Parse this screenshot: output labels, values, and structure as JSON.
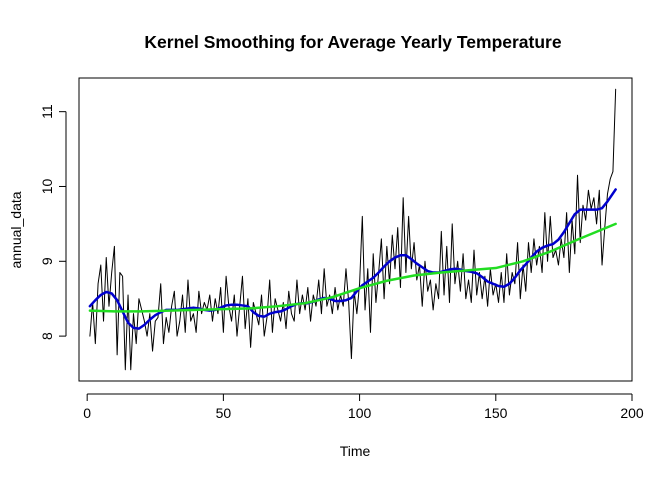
{
  "chart_data": {
    "type": "line",
    "title": "Kernel Smoothing for Average Yearly Temperature",
    "xlabel": "Time",
    "ylabel": "annual_data",
    "xlim": [
      -3,
      200
    ],
    "ylim": [
      7.4,
      11.45
    ],
    "x_ticks": [
      0,
      50,
      100,
      150,
      200
    ],
    "y_ticks": [
      8,
      9,
      10,
      11
    ],
    "x_tick_labels": [
      "0",
      "50",
      "100",
      "150",
      "200"
    ],
    "y_tick_labels": [
      "8",
      "9",
      "10",
      "11"
    ],
    "grid": false,
    "legend": "none",
    "series": [
      {
        "color": "#000000",
        "line_width": 1,
        "x": [
          1,
          2,
          3,
          4,
          5,
          6,
          7,
          8,
          9,
          10,
          11,
          12,
          13,
          14,
          15,
          16,
          17,
          18,
          19,
          20,
          21,
          22,
          23,
          24,
          25,
          26,
          27,
          28,
          29,
          30,
          31,
          32,
          33,
          34,
          35,
          36,
          37,
          38,
          39,
          40,
          41,
          42,
          43,
          44,
          45,
          46,
          47,
          48,
          49,
          50,
          51,
          52,
          53,
          54,
          55,
          56,
          57,
          58,
          59,
          60,
          61,
          62,
          63,
          64,
          65,
          66,
          67,
          68,
          69,
          70,
          71,
          72,
          73,
          74,
          75,
          76,
          77,
          78,
          79,
          80,
          81,
          82,
          83,
          84,
          85,
          86,
          87,
          88,
          89,
          90,
          91,
          92,
          93,
          94,
          95,
          96,
          97,
          98,
          99,
          100,
          101,
          102,
          103,
          104,
          105,
          106,
          107,
          108,
          109,
          110,
          111,
          112,
          113,
          114,
          115,
          116,
          117,
          118,
          119,
          120,
          121,
          122,
          123,
          124,
          125,
          126,
          127,
          128,
          129,
          130,
          131,
          132,
          133,
          134,
          135,
          136,
          137,
          138,
          139,
          140,
          141,
          142,
          143,
          144,
          145,
          146,
          147,
          148,
          149,
          150,
          151,
          152,
          153,
          154,
          155,
          156,
          157,
          158,
          159,
          160,
          161,
          162,
          163,
          164,
          165,
          166,
          167,
          168,
          169,
          170,
          171,
          172,
          173,
          174,
          175,
          176,
          177,
          178,
          179,
          180,
          181,
          182,
          183,
          184,
          185,
          186,
          187,
          188,
          189,
          190,
          191,
          192,
          193,
          194
        ],
        "y": [
          8.0,
          8.45,
          7.9,
          8.7,
          8.95,
          8.2,
          9.05,
          8.4,
          8.85,
          9.2,
          7.75,
          8.85,
          8.8,
          7.55,
          8.55,
          7.55,
          8.3,
          7.9,
          8.5,
          8.35,
          8.2,
          8.0,
          8.3,
          7.8,
          8.2,
          8.25,
          8.7,
          7.9,
          8.25,
          8.05,
          8.4,
          8.6,
          8.0,
          8.2,
          8.55,
          8.05,
          8.75,
          8.2,
          8.3,
          8.05,
          8.6,
          8.3,
          8.45,
          8.35,
          8.55,
          8.2,
          8.5,
          8.3,
          8.65,
          8.05,
          8.8,
          8.4,
          8.2,
          8.55,
          8.0,
          8.4,
          8.8,
          8.1,
          8.5,
          7.85,
          8.45,
          8.3,
          8.15,
          8.55,
          8.0,
          8.25,
          8.75,
          8.05,
          8.5,
          8.35,
          8.2,
          8.45,
          8.1,
          8.6,
          8.3,
          8.2,
          8.75,
          8.3,
          8.55,
          8.35,
          8.65,
          8.2,
          8.55,
          8.4,
          8.75,
          8.3,
          8.9,
          8.4,
          8.55,
          8.3,
          8.65,
          8.35,
          8.55,
          8.4,
          8.9,
          8.45,
          7.7,
          8.6,
          8.3,
          8.7,
          9.6,
          8.35,
          8.9,
          8.05,
          9.1,
          8.45,
          8.85,
          9.3,
          8.5,
          9.2,
          8.7,
          9.35,
          8.9,
          9.45,
          8.65,
          9.85,
          8.85,
          9.6,
          8.9,
          9.25,
          8.75,
          8.95,
          8.4,
          9.0,
          8.6,
          8.75,
          8.35,
          8.7,
          8.5,
          9.4,
          8.55,
          9.2,
          8.45,
          9.5,
          8.7,
          9.0,
          8.6,
          9.1,
          8.5,
          8.75,
          8.45,
          9.15,
          8.55,
          8.85,
          8.5,
          8.8,
          8.4,
          8.9,
          8.55,
          8.7,
          8.45,
          8.85,
          8.45,
          9.1,
          8.55,
          8.85,
          8.7,
          9.25,
          8.5,
          8.95,
          8.6,
          9.25,
          8.85,
          9.3,
          8.95,
          9.2,
          8.85,
          9.65,
          9.0,
          9.6,
          9.05,
          9.15,
          8.95,
          9.3,
          9.05,
          9.65,
          8.85,
          9.55,
          9.1,
          10.15,
          9.25,
          9.75,
          9.55,
          9.95,
          9.7,
          9.85,
          9.5,
          9.95,
          8.95,
          9.45,
          9.9,
          10.1,
          10.2,
          11.3
        ]
      },
      {
        "color": "#0000cd",
        "line_width": 2.5,
        "x": [
          1,
          3,
          5,
          7,
          9,
          11,
          13,
          15,
          17,
          19,
          21,
          23,
          25,
          27,
          29,
          31,
          33,
          35,
          37,
          39,
          41,
          43,
          45,
          47,
          49,
          51,
          53,
          55,
          57,
          59,
          61,
          63,
          65,
          67,
          69,
          71,
          73,
          75,
          77,
          79,
          81,
          83,
          85,
          87,
          89,
          91,
          93,
          95,
          97,
          99,
          101,
          103,
          105,
          107,
          109,
          111,
          113,
          115,
          117,
          119,
          121,
          123,
          125,
          127,
          129,
          131,
          133,
          135,
          137,
          139,
          141,
          143,
          145,
          147,
          149,
          151,
          153,
          155,
          157,
          159,
          161,
          163,
          165,
          167,
          169,
          171,
          173,
          175,
          177,
          179,
          181,
          183,
          185,
          187,
          189,
          191,
          194
        ],
        "y": [
          8.4,
          8.48,
          8.55,
          8.59,
          8.57,
          8.48,
          8.33,
          8.18,
          8.11,
          8.1,
          8.15,
          8.22,
          8.28,
          8.32,
          8.35,
          8.35,
          8.35,
          8.36,
          8.37,
          8.38,
          8.37,
          8.35,
          8.34,
          8.35,
          8.38,
          8.41,
          8.42,
          8.42,
          8.41,
          8.4,
          8.32,
          8.27,
          8.26,
          8.3,
          8.32,
          8.33,
          8.36,
          8.4,
          8.43,
          8.44,
          8.44,
          8.46,
          8.49,
          8.51,
          8.5,
          8.47,
          8.47,
          8.48,
          8.51,
          8.6,
          8.68,
          8.73,
          8.78,
          8.85,
          8.93,
          9.0,
          9.05,
          9.08,
          9.08,
          9.03,
          8.97,
          8.92,
          8.87,
          8.85,
          8.85,
          8.87,
          8.89,
          8.9,
          8.89,
          8.87,
          8.86,
          8.84,
          8.79,
          8.73,
          8.7,
          8.67,
          8.66,
          8.7,
          8.78,
          8.88,
          8.96,
          9.05,
          9.13,
          9.18,
          9.21,
          9.23,
          9.29,
          9.39,
          9.51,
          9.63,
          9.69,
          9.69,
          9.69,
          9.69,
          9.71,
          9.8,
          9.96
        ]
      },
      {
        "color": "#22dd22",
        "line_width": 2.5,
        "x": [
          1,
          10,
          20,
          30,
          40,
          50,
          60,
          70,
          80,
          90,
          100,
          110,
          120,
          130,
          140,
          150,
          160,
          170,
          180,
          190,
          194
        ],
        "y": [
          8.34,
          8.33,
          8.33,
          8.34,
          8.35,
          8.36,
          8.37,
          8.4,
          8.44,
          8.52,
          8.64,
          8.74,
          8.81,
          8.85,
          8.88,
          8.91,
          9.0,
          9.13,
          9.29,
          9.44,
          9.5
        ]
      }
    ]
  }
}
